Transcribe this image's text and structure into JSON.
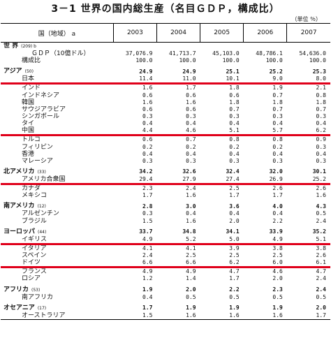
{
  "title": "3－1 世界の国内総生産（名目ＧＤＰ，構成比）",
  "unit": "（単位 ％）",
  "header": {
    "country": "国（地域） a",
    "years": [
      "2003",
      "2004",
      "2005",
      "2006",
      "2007"
    ]
  },
  "rows": [
    {
      "type": "lvl1",
      "label": "世 界",
      "note": "(209) b",
      "values": [
        "",
        "",
        "",
        "",
        ""
      ]
    },
    {
      "type": "lvl3",
      "label": "ＧＤＰ（10億ドル）",
      "values": [
        "37,076.9",
        "41,713.7",
        "45,103.0",
        "48,786.1",
        "54,636.0"
      ]
    },
    {
      "type": "lvl2",
      "label": "構成比",
      "values": [
        "100.0",
        "100.0",
        "100.0",
        "100.0",
        "100.0"
      ]
    },
    {
      "type": "gap"
    },
    {
      "type": "lvl1",
      "label": "アジア",
      "note": "(50)",
      "values": [
        "24.9",
        "24.9",
        "25.1",
        "25.2",
        "25.3"
      ]
    },
    {
      "type": "lvl2",
      "label": "日本",
      "values": [
        "11.4",
        "11.0",
        "10.1",
        "9.0",
        "8.0"
      ],
      "hl": true
    },
    {
      "type": "lvl2",
      "label": "インド",
      "values": [
        "1.6",
        "1.7",
        "1.8",
        "1.9",
        "2.1"
      ]
    },
    {
      "type": "lvl2",
      "label": "インドネシア",
      "values": [
        "0.6",
        "0.6",
        "0.6",
        "0.7",
        "0.8"
      ]
    },
    {
      "type": "lvl2",
      "label": "韓国",
      "values": [
        "1.6",
        "1.6",
        "1.8",
        "1.8",
        "1.8"
      ]
    },
    {
      "type": "lvl2",
      "label": "サウジアラビア",
      "values": [
        "0.6",
        "0.6",
        "0.7",
        "0.7",
        "0.7"
      ]
    },
    {
      "type": "lvl2",
      "label": "シンガポール",
      "values": [
        "0.3",
        "0.3",
        "0.3",
        "0.3",
        "0.3"
      ]
    },
    {
      "type": "lvl2",
      "label": "タイ",
      "values": [
        "0.4",
        "0.4",
        "0.4",
        "0.4",
        "0.4"
      ]
    },
    {
      "type": "lvl2",
      "label": "中国",
      "values": [
        "4.4",
        "4.6",
        "5.1",
        "5.7",
        "6.2"
      ],
      "hl": true
    },
    {
      "type": "lvl2",
      "label": "トルコ",
      "values": [
        "0.6",
        "0.7",
        "0.8",
        "0.8",
        "0.9"
      ]
    },
    {
      "type": "lvl2",
      "label": "フィリピン",
      "values": [
        "0.2",
        "0.2",
        "0.2",
        "0.2",
        "0.3"
      ]
    },
    {
      "type": "lvl2",
      "label": "香港",
      "values": [
        "0.4",
        "0.4",
        "0.4",
        "0.4",
        "0.4"
      ]
    },
    {
      "type": "lvl2",
      "label": "マレーシア",
      "values": [
        "0.3",
        "0.3",
        "0.3",
        "0.3",
        "0.3"
      ]
    },
    {
      "type": "gap"
    },
    {
      "type": "lvl1",
      "label": "北アメリカ",
      "note": "(33)",
      "values": [
        "34.2",
        "32.6",
        "32.4",
        "32.0",
        "30.1"
      ]
    },
    {
      "type": "lvl2",
      "label": "アメリカ合衆国",
      "values": [
        "29.4",
        "27.9",
        "27.4",
        "26.9",
        "25.2"
      ],
      "hl": true
    },
    {
      "type": "lvl2",
      "label": "カナダ",
      "values": [
        "2.3",
        "2.4",
        "2.5",
        "2.6",
        "2.6"
      ]
    },
    {
      "type": "lvl2",
      "label": "メキシコ",
      "values": [
        "1.7",
        "1.6",
        "1.7",
        "1.7",
        "1.6"
      ]
    },
    {
      "type": "gap"
    },
    {
      "type": "lvl1",
      "label": "南アメリカ",
      "note": "(12)",
      "values": [
        "2.8",
        "3.0",
        "3.6",
        "4.0",
        "4.3"
      ]
    },
    {
      "type": "lvl2",
      "label": "アルゼンチン",
      "values": [
        "0.3",
        "0.4",
        "0.4",
        "0.4",
        "0.5"
      ]
    },
    {
      "type": "lvl2",
      "label": "ブラジル",
      "values": [
        "1.5",
        "1.6",
        "2.0",
        "2.2",
        "2.4"
      ]
    },
    {
      "type": "gap"
    },
    {
      "type": "lvl1",
      "label": "ヨーロッパ",
      "note": "(44)",
      "values": [
        "33.7",
        "34.8",
        "34.1",
        "33.9",
        "35.2"
      ]
    },
    {
      "type": "lvl2",
      "label": "イギリス",
      "values": [
        "4.9",
        "5.2",
        "5.0",
        "4.9",
        "5.1"
      ],
      "hl": true
    },
    {
      "type": "lvl2",
      "label": "イタリア",
      "values": [
        "4.1",
        "4.1",
        "3.9",
        "3.8",
        "3.8"
      ]
    },
    {
      "type": "lvl2",
      "label": "スペイン",
      "values": [
        "2.4",
        "2.5",
        "2.5",
        "2.5",
        "2.6"
      ]
    },
    {
      "type": "lvl2",
      "label": "ドイツ",
      "values": [
        "6.6",
        "6.6",
        "6.2",
        "6.0",
        "6.1"
      ],
      "hl": true
    },
    {
      "type": "lvl2",
      "label": "フランス",
      "values": [
        "4.9",
        "4.9",
        "4.7",
        "4.6",
        "4.7"
      ]
    },
    {
      "type": "lvl2",
      "label": "ロシア",
      "values": [
        "1.2",
        "1.4",
        "1.7",
        "2.0",
        "2.4"
      ]
    },
    {
      "type": "gap"
    },
    {
      "type": "lvl1",
      "label": "アフリカ",
      "note": "(53)",
      "values": [
        "1.9",
        "2.0",
        "2.2",
        "2.3",
        "2.4"
      ]
    },
    {
      "type": "lvl2",
      "label": "南アフリカ",
      "values": [
        "0.4",
        "0.5",
        "0.5",
        "0.5",
        "0.5"
      ]
    },
    {
      "type": "gap"
    },
    {
      "type": "lvl1",
      "label": "オセアニア",
      "note": "(17)",
      "values": [
        "1.7",
        "1.9",
        "1.9",
        "1.9",
        "2.0"
      ]
    },
    {
      "type": "lvl2",
      "label": "オーストラリア",
      "values": [
        "1.5",
        "1.6",
        "1.6",
        "1.6",
        "1.7"
      ],
      "last": true
    }
  ]
}
